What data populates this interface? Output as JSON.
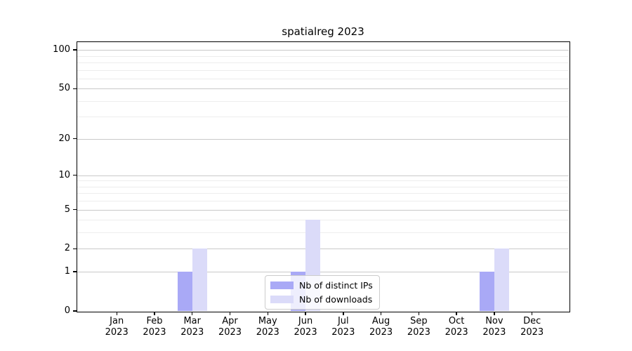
{
  "chart_data": {
    "type": "bar",
    "title": "spatialreg 2023",
    "categories": [
      "Jan",
      "Feb",
      "Mar",
      "Apr",
      "May",
      "Jun",
      "Jul",
      "Aug",
      "Sep",
      "Oct",
      "Nov",
      "Dec"
    ],
    "category_year": "2023",
    "series": [
      {
        "name": "Nb of distinct IPs",
        "color": "#a9a9f6",
        "values": [
          0,
          0,
          1,
          0,
          0,
          1,
          0,
          0,
          0,
          0,
          1,
          0
        ]
      },
      {
        "name": "Nb of downloads",
        "color": "#dbdbf9",
        "values": [
          0,
          0,
          2,
          0,
          0,
          4,
          0,
          0,
          0,
          0,
          2,
          0
        ]
      }
    ],
    "yscale": "log1p",
    "ylim": [
      0,
      115
    ],
    "y_ticks": [
      {
        "value": 0,
        "label": "0"
      },
      {
        "value": 1,
        "label": "1"
      },
      {
        "value": 2,
        "label": "2"
      },
      {
        "value": 5,
        "label": "5"
      },
      {
        "value": 10,
        "label": "10"
      },
      {
        "value": 20,
        "label": "20"
      },
      {
        "value": 50,
        "label": "50"
      },
      {
        "value": 100,
        "label": "100"
      }
    ],
    "y_minor_gridlines": [
      3,
      4,
      6,
      7,
      8,
      9,
      30,
      40,
      60,
      70,
      80,
      90
    ],
    "legend": {
      "position": "lower-center",
      "entries": [
        "Nb of distinct IPs",
        "Nb of downloads"
      ]
    },
    "colors": {
      "grid_major": "#c9c9c9",
      "grid_minor": "#ededed",
      "spine": "#000000",
      "background": "#ffffff",
      "text": "#000000"
    }
  }
}
